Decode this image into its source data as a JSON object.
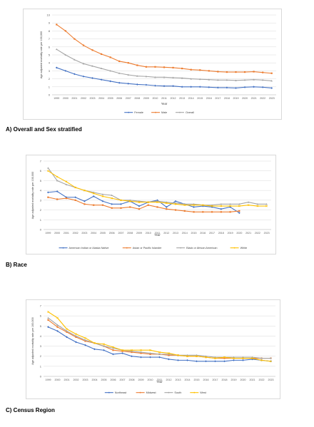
{
  "colors": {
    "blue": "#4472C4",
    "orange": "#ED7D31",
    "gray": "#A5A5A5",
    "yellow": "#FFC000",
    "grid": "#D9D9D9"
  },
  "captions": {
    "a": "A) Overall and Sex stratified",
    "b": "B) Race",
    "c": "C) Census Region"
  },
  "chart_data": [
    {
      "type": "line",
      "xlabel": "Year",
      "ylabel": "Age adjusted mortality rate per 100,000",
      "ylim": [
        0,
        10
      ],
      "yticks": [
        "0",
        "1",
        "2",
        "3",
        "4",
        "5",
        "6",
        "7",
        "8",
        "9",
        "10"
      ],
      "grid": true,
      "legend_position": "bottom",
      "categories": [
        "1999",
        "2000",
        "2001",
        "2002",
        "2003",
        "2004",
        "2005",
        "2006",
        "2007",
        "2008",
        "2009",
        "2010",
        "2011",
        "2012",
        "2013",
        "2014",
        "2015",
        "2016",
        "2017",
        "2018",
        "2019",
        "2020",
        "2021",
        "2022",
        "2023"
      ],
      "series": [
        {
          "name": "Female",
          "color": "blue",
          "marker": "diamond",
          "values": [
            3.4,
            3.0,
            2.6,
            2.3,
            2.1,
            1.9,
            1.7,
            1.5,
            1.4,
            1.3,
            1.25,
            1.15,
            1.1,
            1.1,
            1.0,
            1.0,
            1.0,
            0.95,
            0.9,
            0.9,
            0.85,
            0.95,
            1.0,
            0.95,
            0.85
          ]
        },
        {
          "name": "Male",
          "color": "orange",
          "marker": "square",
          "values": [
            8.8,
            8.0,
            7.0,
            6.2,
            5.6,
            5.1,
            4.7,
            4.2,
            4.0,
            3.7,
            3.5,
            3.5,
            3.45,
            3.4,
            3.3,
            3.15,
            3.1,
            3.0,
            2.9,
            2.85,
            2.85,
            2.85,
            2.9,
            2.8,
            2.7
          ]
        },
        {
          "name": "Overall",
          "color": "gray",
          "marker": "triangle",
          "values": [
            5.7,
            5.0,
            4.4,
            3.9,
            3.6,
            3.3,
            3.0,
            2.7,
            2.5,
            2.35,
            2.3,
            2.2,
            2.2,
            2.15,
            2.1,
            2.0,
            1.95,
            1.9,
            1.85,
            1.85,
            1.8,
            1.85,
            1.9,
            1.85,
            1.75
          ]
        }
      ]
    },
    {
      "type": "line",
      "xlabel": "Year",
      "ylabel": "Age adjusted mortality rate per 100,000",
      "ylim": [
        0,
        7
      ],
      "yticks": [
        "0",
        "1",
        "2",
        "3",
        "4",
        "5",
        "6",
        "7"
      ],
      "grid": true,
      "legend_position": "bottom",
      "categories": [
        "1999",
        "2000",
        "2001",
        "2002",
        "2003",
        "2004",
        "2005",
        "2006",
        "2007",
        "2008",
        "2009",
        "2010",
        "2011",
        "2012",
        "2013",
        "2014",
        "2015",
        "2016",
        "2017",
        "2018",
        "2019",
        "2020",
        "2021",
        "2022",
        "2023"
      ],
      "series": [
        {
          "name": "American Indian or Alaska Native",
          "color": "blue",
          "marker": "diamond",
          "values": [
            3.8,
            3.9,
            3.3,
            3.3,
            2.9,
            3.4,
            2.9,
            2.6,
            2.6,
            2.9,
            2.4,
            2.8,
            3.0,
            2.3,
            2.9,
            2.6,
            2.3,
            2.4,
            2.3,
            2.1,
            2.3,
            1.7,
            null,
            null,
            null
          ]
        },
        {
          "name": "Asian or Pacific Islander",
          "color": "orange",
          "marker": "square",
          "values": [
            3.3,
            3.1,
            3.2,
            3.0,
            2.6,
            2.5,
            2.5,
            2.2,
            2.2,
            2.3,
            2.1,
            2.5,
            2.3,
            2.1,
            2.0,
            1.9,
            1.8,
            1.8,
            1.8,
            1.8,
            1.8,
            1.9,
            null,
            null,
            null
          ]
        },
        {
          "name": "Black or African American",
          "color": "gray",
          "marker": "triangle",
          "values": [
            6.3,
            5.0,
            4.6,
            4.3,
            4.0,
            3.8,
            3.6,
            3.5,
            3.0,
            3.0,
            2.9,
            2.8,
            2.9,
            2.8,
            2.7,
            2.6,
            2.6,
            2.5,
            2.5,
            2.6,
            2.6,
            2.6,
            2.8,
            2.6,
            2.6
          ]
        },
        {
          "name": "White",
          "color": "yellow",
          "marker": "x",
          "values": [
            6.0,
            5.4,
            4.9,
            4.3,
            4.0,
            3.7,
            3.4,
            3.2,
            3.0,
            2.9,
            2.8,
            2.8,
            2.8,
            2.7,
            2.6,
            2.5,
            2.5,
            2.5,
            2.4,
            2.4,
            2.4,
            2.4,
            2.5,
            2.4,
            2.4
          ]
        }
      ]
    },
    {
      "type": "line",
      "xlabel": "Year",
      "ylabel": "Age adjusted mortality rate per 100,000",
      "ylim": [
        0,
        7
      ],
      "yticks": [
        "0",
        "1",
        "2",
        "3",
        "4",
        "5",
        "6",
        "7"
      ],
      "grid": true,
      "legend_position": "bottom",
      "categories": [
        "1999",
        "2000",
        "2001",
        "2002",
        "2003",
        "2004",
        "2005",
        "2006",
        "2007",
        "2008",
        "2009",
        "2010",
        "2011",
        "2012",
        "2013",
        "2014",
        "2015",
        "2016",
        "2017",
        "2018",
        "2019",
        "2020",
        "2021",
        "2022",
        "2023"
      ],
      "series": [
        {
          "name": "Northeast",
          "color": "blue",
          "marker": "diamond",
          "values": [
            4.9,
            4.5,
            3.9,
            3.4,
            3.1,
            2.7,
            2.6,
            2.2,
            2.3,
            2.0,
            1.9,
            1.9,
            1.9,
            1.7,
            1.6,
            1.6,
            1.5,
            1.5,
            1.5,
            1.5,
            1.6,
            1.6,
            1.7,
            1.6,
            1.5
          ]
        },
        {
          "name": "Midwest",
          "color": "orange",
          "marker": "square",
          "values": [
            5.6,
            4.9,
            4.4,
            3.9,
            3.5,
            3.3,
            3.0,
            2.6,
            2.5,
            2.4,
            2.3,
            2.2,
            2.2,
            2.1,
            2.1,
            2.0,
            2.0,
            1.9,
            1.8,
            1.8,
            1.8,
            1.8,
            1.8,
            1.8,
            1.8
          ]
        },
        {
          "name": "South",
          "color": "gray",
          "marker": "triangle",
          "values": [
            5.8,
            5.1,
            4.5,
            4.0,
            3.6,
            3.3,
            3.0,
            2.8,
            2.6,
            2.5,
            2.4,
            2.3,
            2.2,
            2.2,
            2.1,
            2.1,
            2.1,
            2.0,
            1.9,
            1.9,
            1.9,
            1.9,
            1.9,
            1.8,
            1.8
          ]
        },
        {
          "name": "West",
          "color": "yellow",
          "marker": "x",
          "values": [
            6.4,
            5.8,
            4.7,
            4.2,
            3.8,
            3.3,
            3.2,
            2.9,
            2.6,
            2.6,
            2.6,
            2.6,
            2.4,
            2.3,
            2.1,
            2.0,
            2.0,
            1.9,
            1.8,
            1.9,
            1.8,
            1.8,
            1.8,
            1.6,
            1.5
          ]
        }
      ]
    }
  ]
}
